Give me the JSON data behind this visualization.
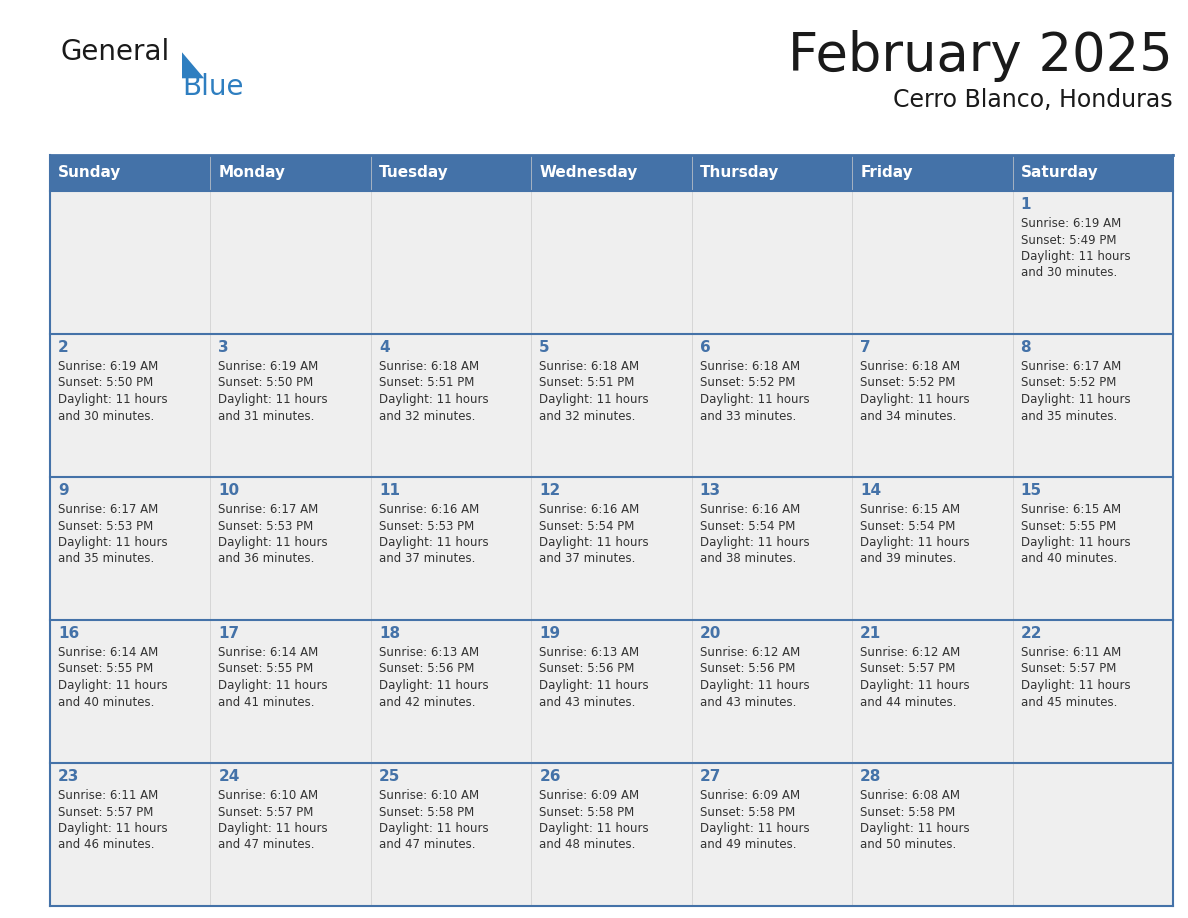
{
  "title": "February 2025",
  "subtitle": "Cerro Blanco, Honduras",
  "days_of_week": [
    "Sunday",
    "Monday",
    "Tuesday",
    "Wednesday",
    "Thursday",
    "Friday",
    "Saturday"
  ],
  "header_bg": "#4472A8",
  "header_text": "#FFFFFF",
  "cell_bg": "#EFEFEF",
  "cell_text_color": "#333333",
  "day_number_color": "#4472A8",
  "border_color": "#4472A8",
  "title_color": "#1a1a1a",
  "subtitle_color": "#1a1a1a",
  "generalblue_black": "#1a1a1a",
  "generalblue_blue": "#2E7EC0",
  "weeks": [
    {
      "days": [
        {
          "date": null,
          "sunrise": null,
          "sunset": null,
          "daylight": null
        },
        {
          "date": null,
          "sunrise": null,
          "sunset": null,
          "daylight": null
        },
        {
          "date": null,
          "sunrise": null,
          "sunset": null,
          "daylight": null
        },
        {
          "date": null,
          "sunrise": null,
          "sunset": null,
          "daylight": null
        },
        {
          "date": null,
          "sunrise": null,
          "sunset": null,
          "daylight": null
        },
        {
          "date": null,
          "sunrise": null,
          "sunset": null,
          "daylight": null
        },
        {
          "date": 1,
          "sunrise": "6:19 AM",
          "sunset": "5:49 PM",
          "daylight": "11 hours\nand 30 minutes."
        }
      ]
    },
    {
      "days": [
        {
          "date": 2,
          "sunrise": "6:19 AM",
          "sunset": "5:50 PM",
          "daylight": "11 hours\nand 30 minutes."
        },
        {
          "date": 3,
          "sunrise": "6:19 AM",
          "sunset": "5:50 PM",
          "daylight": "11 hours\nand 31 minutes."
        },
        {
          "date": 4,
          "sunrise": "6:18 AM",
          "sunset": "5:51 PM",
          "daylight": "11 hours\nand 32 minutes."
        },
        {
          "date": 5,
          "sunrise": "6:18 AM",
          "sunset": "5:51 PM",
          "daylight": "11 hours\nand 32 minutes."
        },
        {
          "date": 6,
          "sunrise": "6:18 AM",
          "sunset": "5:52 PM",
          "daylight": "11 hours\nand 33 minutes."
        },
        {
          "date": 7,
          "sunrise": "6:18 AM",
          "sunset": "5:52 PM",
          "daylight": "11 hours\nand 34 minutes."
        },
        {
          "date": 8,
          "sunrise": "6:17 AM",
          "sunset": "5:52 PM",
          "daylight": "11 hours\nand 35 minutes."
        }
      ]
    },
    {
      "days": [
        {
          "date": 9,
          "sunrise": "6:17 AM",
          "sunset": "5:53 PM",
          "daylight": "11 hours\nand 35 minutes."
        },
        {
          "date": 10,
          "sunrise": "6:17 AM",
          "sunset": "5:53 PM",
          "daylight": "11 hours\nand 36 minutes."
        },
        {
          "date": 11,
          "sunrise": "6:16 AM",
          "sunset": "5:53 PM",
          "daylight": "11 hours\nand 37 minutes."
        },
        {
          "date": 12,
          "sunrise": "6:16 AM",
          "sunset": "5:54 PM",
          "daylight": "11 hours\nand 37 minutes."
        },
        {
          "date": 13,
          "sunrise": "6:16 AM",
          "sunset": "5:54 PM",
          "daylight": "11 hours\nand 38 minutes."
        },
        {
          "date": 14,
          "sunrise": "6:15 AM",
          "sunset": "5:54 PM",
          "daylight": "11 hours\nand 39 minutes."
        },
        {
          "date": 15,
          "sunrise": "6:15 AM",
          "sunset": "5:55 PM",
          "daylight": "11 hours\nand 40 minutes."
        }
      ]
    },
    {
      "days": [
        {
          "date": 16,
          "sunrise": "6:14 AM",
          "sunset": "5:55 PM",
          "daylight": "11 hours\nand 40 minutes."
        },
        {
          "date": 17,
          "sunrise": "6:14 AM",
          "sunset": "5:55 PM",
          "daylight": "11 hours\nand 41 minutes."
        },
        {
          "date": 18,
          "sunrise": "6:13 AM",
          "sunset": "5:56 PM",
          "daylight": "11 hours\nand 42 minutes."
        },
        {
          "date": 19,
          "sunrise": "6:13 AM",
          "sunset": "5:56 PM",
          "daylight": "11 hours\nand 43 minutes."
        },
        {
          "date": 20,
          "sunrise": "6:12 AM",
          "sunset": "5:56 PM",
          "daylight": "11 hours\nand 43 minutes."
        },
        {
          "date": 21,
          "sunrise": "6:12 AM",
          "sunset": "5:57 PM",
          "daylight": "11 hours\nand 44 minutes."
        },
        {
          "date": 22,
          "sunrise": "6:11 AM",
          "sunset": "5:57 PM",
          "daylight": "11 hours\nand 45 minutes."
        }
      ]
    },
    {
      "days": [
        {
          "date": 23,
          "sunrise": "6:11 AM",
          "sunset": "5:57 PM",
          "daylight": "11 hours\nand 46 minutes."
        },
        {
          "date": 24,
          "sunrise": "6:10 AM",
          "sunset": "5:57 PM",
          "daylight": "11 hours\nand 47 minutes."
        },
        {
          "date": 25,
          "sunrise": "6:10 AM",
          "sunset": "5:58 PM",
          "daylight": "11 hours\nand 47 minutes."
        },
        {
          "date": 26,
          "sunrise": "6:09 AM",
          "sunset": "5:58 PM",
          "daylight": "11 hours\nand 48 minutes."
        },
        {
          "date": 27,
          "sunrise": "6:09 AM",
          "sunset": "5:58 PM",
          "daylight": "11 hours\nand 49 minutes."
        },
        {
          "date": 28,
          "sunrise": "6:08 AM",
          "sunset": "5:58 PM",
          "daylight": "11 hours\nand 50 minutes."
        },
        {
          "date": null,
          "sunrise": null,
          "sunset": null,
          "daylight": null
        }
      ]
    }
  ]
}
